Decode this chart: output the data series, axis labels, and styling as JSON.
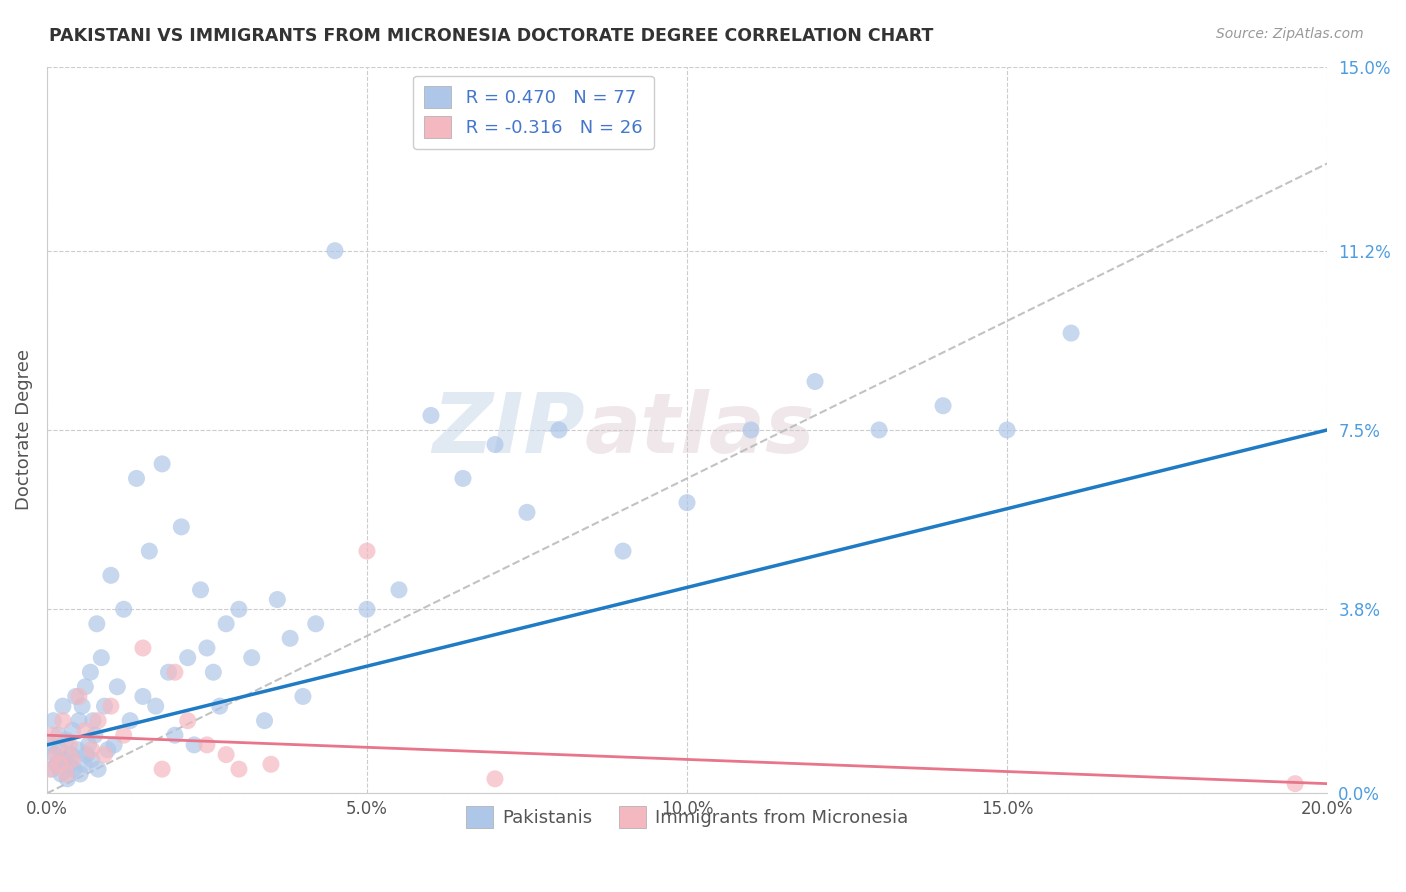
{
  "title": "PAKISTANI VS IMMIGRANTS FROM MICRONESIA DOCTORATE DEGREE CORRELATION CHART",
  "source": "Source: ZipAtlas.com",
  "ylabel": "Doctorate Degree",
  "xlabel_ticks": [
    "0.0%",
    "5.0%",
    "10.0%",
    "15.0%",
    "20.0%"
  ],
  "xtick_vals": [
    0.0,
    5.0,
    10.0,
    15.0,
    20.0
  ],
  "ylabel_ticks": [
    "0.0%",
    "3.8%",
    "7.5%",
    "11.2%",
    "15.0%"
  ],
  "ytick_vals": [
    0.0,
    3.8,
    7.5,
    11.2,
    15.0
  ],
  "xlim": [
    0.0,
    20.0
  ],
  "ylim": [
    0.0,
    15.0
  ],
  "pakistani_R": 0.47,
  "pakistani_N": 77,
  "micronesia_R": -0.316,
  "micronesia_N": 26,
  "legend_label_1": "Pakistanis",
  "legend_label_2": "Immigrants from Micronesia",
  "scatter_color_1": "#aec6e8",
  "scatter_color_2": "#f4b8c1",
  "line_color_1": "#1f7bc4",
  "line_color_2": "#e8758a",
  "dashed_line_color": "#b8b8b8",
  "watermark_zip": "ZIP",
  "watermark_atlas": "atlas",
  "pakistani_x": [
    0.05,
    0.08,
    0.1,
    0.12,
    0.15,
    0.18,
    0.2,
    0.22,
    0.25,
    0.28,
    0.3,
    0.32,
    0.35,
    0.38,
    0.4,
    0.42,
    0.45,
    0.48,
    0.5,
    0.52,
    0.55,
    0.58,
    0.6,
    0.62,
    0.65,
    0.68,
    0.7,
    0.72,
    0.75,
    0.78,
    0.8,
    0.85,
    0.9,
    0.95,
    1.0,
    1.05,
    1.1,
    1.2,
    1.3,
    1.4,
    1.5,
    1.6,
    1.7,
    1.8,
    1.9,
    2.0,
    2.1,
    2.2,
    2.3,
    2.4,
    2.5,
    2.6,
    2.7,
    2.8,
    3.0,
    3.2,
    3.4,
    3.6,
    3.8,
    4.0,
    4.2,
    4.5,
    5.0,
    5.5,
    6.0,
    6.5,
    7.0,
    7.5,
    8.0,
    9.0,
    10.0,
    11.0,
    12.0,
    13.0,
    14.0,
    15.0,
    16.0
  ],
  "pakistani_y": [
    1.0,
    0.5,
    1.5,
    0.8,
    0.6,
    1.2,
    0.9,
    0.4,
    1.8,
    0.7,
    1.1,
    0.3,
    0.6,
    0.8,
    1.3,
    0.5,
    2.0,
    0.9,
    1.5,
    0.4,
    1.8,
    0.6,
    2.2,
    0.8,
    1.0,
    2.5,
    0.7,
    1.5,
    1.2,
    3.5,
    0.5,
    2.8,
    1.8,
    0.9,
    4.5,
    1.0,
    2.2,
    3.8,
    1.5,
    6.5,
    2.0,
    5.0,
    1.8,
    6.8,
    2.5,
    1.2,
    5.5,
    2.8,
    1.0,
    4.2,
    3.0,
    2.5,
    1.8,
    3.5,
    3.8,
    2.8,
    1.5,
    4.0,
    3.2,
    2.0,
    3.5,
    11.2,
    3.8,
    4.2,
    7.8,
    6.5,
    7.2,
    5.8,
    7.5,
    5.0,
    6.0,
    7.5,
    8.5,
    7.5,
    8.0,
    7.5,
    9.5
  ],
  "micronesia_x": [
    0.05,
    0.1,
    0.15,
    0.2,
    0.25,
    0.3,
    0.35,
    0.4,
    0.5,
    0.6,
    0.7,
    0.8,
    0.9,
    1.0,
    1.2,
    1.5,
    1.8,
    2.0,
    2.2,
    2.5,
    2.8,
    3.0,
    3.5,
    5.0,
    7.0,
    19.5
  ],
  "micronesia_y": [
    0.5,
    1.2,
    0.8,
    0.6,
    1.5,
    0.4,
    1.0,
    0.7,
    2.0,
    1.3,
    0.9,
    1.5,
    0.8,
    1.8,
    1.2,
    3.0,
    0.5,
    2.5,
    1.5,
    1.0,
    0.8,
    0.5,
    0.6,
    5.0,
    0.3,
    0.2
  ]
}
